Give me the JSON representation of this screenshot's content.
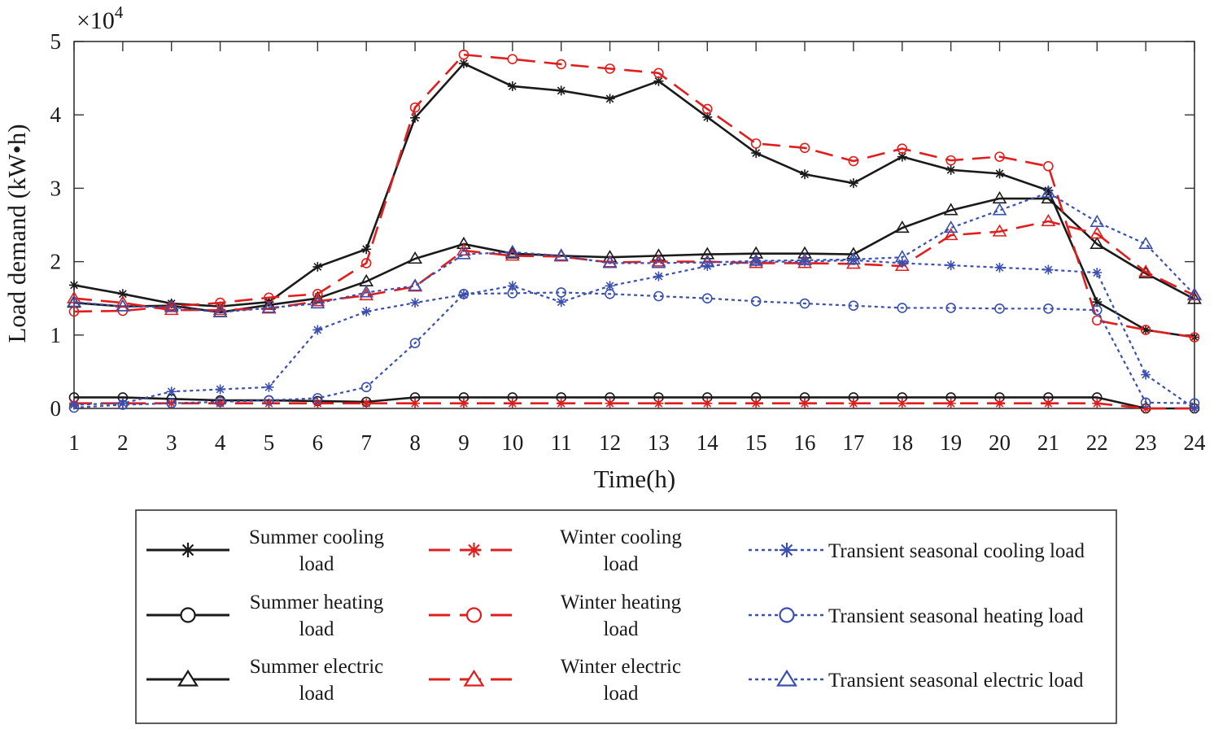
{
  "chart_data": {
    "type": "line",
    "title": "",
    "xlabel": "Time(h)",
    "ylabel": "Load demand (kW•h)",
    "y_multiplier": "×10",
    "y_multiplier_exp": "4",
    "x": [
      1,
      2,
      3,
      4,
      5,
      6,
      7,
      8,
      9,
      10,
      11,
      12,
      13,
      14,
      15,
      16,
      17,
      18,
      19,
      20,
      21,
      22,
      23,
      24
    ],
    "xlim": [
      1,
      24
    ],
    "ylim": [
      0,
      5
    ],
    "x_ticks": [
      "1",
      "2",
      "3",
      "4",
      "5",
      "6",
      "7",
      "8",
      "9",
      "10",
      "11",
      "12",
      "13",
      "14",
      "15",
      "16",
      "17",
      "18",
      "19",
      "20",
      "21",
      "22",
      "23",
      "24"
    ],
    "y_ticks": [
      "0",
      "1",
      "2",
      "3",
      "4",
      "5"
    ],
    "grid": false,
    "legend_position": "bottom",
    "series": [
      {
        "name": "Summer cooling load",
        "legend_lines": [
          "Summer cooling",
          "load"
        ],
        "color": "#1a1a1a",
        "dash": "solid",
        "marker": "star",
        "values": [
          1.68,
          1.56,
          1.43,
          1.39,
          1.45,
          1.93,
          2.17,
          3.96,
          4.7,
          4.39,
          4.33,
          4.22,
          4.46,
          3.97,
          3.48,
          3.19,
          3.07,
          3.43,
          3.25,
          3.2,
          2.97,
          1.45,
          1.07,
          0.97
        ]
      },
      {
        "name": "Summer heating load",
        "legend_lines": [
          "Summer heating",
          "load"
        ],
        "color": "#1a1a1a",
        "dash": "solid",
        "marker": "circle",
        "values": [
          0.15,
          0.15,
          0.13,
          0.11,
          0.11,
          0.1,
          0.09,
          0.15,
          0.15,
          0.15,
          0.15,
          0.15,
          0.15,
          0.15,
          0.15,
          0.15,
          0.15,
          0.15,
          0.15,
          0.15,
          0.15,
          0.15,
          0.0,
          0.0
        ]
      },
      {
        "name": "Summer electric load",
        "legend_lines": [
          "Summer electric",
          "load"
        ],
        "color": "#1a1a1a",
        "dash": "solid",
        "marker": "triangle",
        "values": [
          1.44,
          1.39,
          1.4,
          1.31,
          1.41,
          1.5,
          1.73,
          2.04,
          2.24,
          2.11,
          2.08,
          2.06,
          2.08,
          2.1,
          2.11,
          2.11,
          2.1,
          2.46,
          2.7,
          2.86,
          2.86,
          2.24,
          1.84,
          1.49
        ]
      },
      {
        "name": "Winter cooling load",
        "legend_lines": [
          "Winter cooling",
          "load"
        ],
        "color": "#e01e1e",
        "dash": "long",
        "marker": "star",
        "values": [
          0.07,
          0.07,
          0.07,
          0.07,
          0.07,
          0.07,
          0.07,
          0.07,
          0.07,
          0.07,
          0.07,
          0.07,
          0.07,
          0.07,
          0.07,
          0.07,
          0.07,
          0.07,
          0.07,
          0.07,
          0.07,
          0.07,
          0.0,
          0.0
        ]
      },
      {
        "name": "Winter heating load",
        "legend_lines": [
          "Winter heating",
          "load"
        ],
        "color": "#e01e1e",
        "dash": "long",
        "marker": "circle",
        "values": [
          1.32,
          1.33,
          1.39,
          1.44,
          1.51,
          1.56,
          1.98,
          4.1,
          4.82,
          4.76,
          4.69,
          4.63,
          4.57,
          4.08,
          3.61,
          3.55,
          3.37,
          3.54,
          3.38,
          3.43,
          3.3,
          1.2,
          1.07,
          0.97
        ]
      },
      {
        "name": "Winter electric load",
        "legend_lines": [
          "Winter electric",
          "load"
        ],
        "color": "#e01e1e",
        "dash": "long",
        "marker": "triangle",
        "values": [
          1.5,
          1.44,
          1.34,
          1.34,
          1.36,
          1.46,
          1.54,
          1.66,
          2.15,
          2.08,
          2.07,
          1.99,
          2.0,
          2.0,
          1.98,
          1.98,
          1.97,
          1.94,
          2.36,
          2.41,
          2.55,
          2.38,
          1.86,
          1.54
        ]
      },
      {
        "name": "Transient seasonal cooling load",
        "legend_lines": [
          "Transient seasonal cooling load"
        ],
        "color": "#3a4fb0",
        "dash": "dot",
        "marker": "star",
        "values": [
          0.05,
          0.07,
          0.23,
          0.26,
          0.29,
          1.07,
          1.32,
          1.44,
          1.55,
          1.67,
          1.45,
          1.67,
          1.8,
          1.94,
          2.0,
          2.0,
          2.02,
          1.98,
          1.95,
          1.92,
          1.89,
          1.85,
          0.46,
          0.0
        ]
      },
      {
        "name": "Transient seasonal heating load",
        "legend_lines": [
          "Transient seasonal heating load"
        ],
        "color": "#3a4fb0",
        "dash": "dot",
        "marker": "circle",
        "values": [
          0.01,
          0.05,
          0.07,
          0.09,
          0.11,
          0.14,
          0.29,
          0.89,
          1.56,
          1.57,
          1.58,
          1.56,
          1.53,
          1.5,
          1.46,
          1.43,
          1.4,
          1.37,
          1.37,
          1.36,
          1.36,
          1.34,
          0.08,
          0.07
        ]
      },
      {
        "name": "Transient seasonal electric load",
        "legend_lines": [
          "Transient seasonal electric load"
        ],
        "color": "#3a4fb0",
        "dash": "dot",
        "marker": "triangle",
        "values": [
          1.45,
          1.39,
          1.38,
          1.31,
          1.37,
          1.43,
          1.58,
          1.67,
          2.1,
          2.13,
          2.08,
          1.98,
          1.98,
          1.99,
          2.01,
          2.02,
          2.03,
          2.06,
          2.46,
          2.7,
          2.94,
          2.54,
          2.24,
          1.55
        ]
      }
    ]
  }
}
